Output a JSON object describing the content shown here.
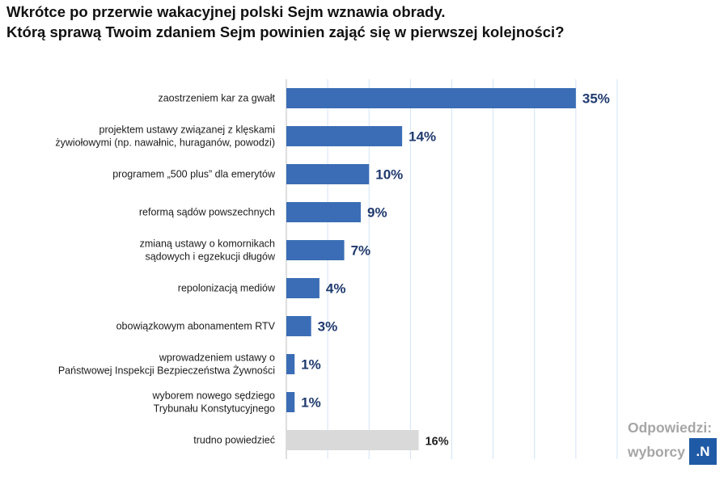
{
  "title": {
    "line1": "Wkrótce po przerwie wakacyjnej polski Sejm wznawia obrady.",
    "line2": "Którą sprawą Twoim zdaniem Sejm powinien zająć się w pierwszej kolejności?"
  },
  "chart_data": {
    "type": "bar",
    "orientation": "horizontal",
    "title": "Wkrótce po przerwie wakacyjnej polski Sejm wznawia obrady. Którą sprawą Twoim zdaniem Sejm powinien zająć się w pierwszej kolejności?",
    "categories": [
      [
        "zaostrzeniem kar za gwałt"
      ],
      [
        "projektem ustawy związanej z klęskami",
        "żywiołowymi (np. nawałnic, huraganów, powodzi)"
      ],
      [
        "programem „500 plus” dla emerytów"
      ],
      [
        "reformą sądów powszechnych"
      ],
      [
        "zmianą ustawy o komornikach",
        "sądowych i egzekucji długów"
      ],
      [
        "repolonizacją mediów"
      ],
      [
        "obowiązkowym abonamentem RTV"
      ],
      [
        "wprowadzeniem ustawy o",
        "Państwowej Inspekcji Bezpieczeństwa Żywności"
      ],
      [
        "wyborem nowego sędziego",
        "Trybunału Konstytucyjnego"
      ],
      [
        "trudno powiedzieć"
      ]
    ],
    "values": [
      35,
      14,
      10,
      9,
      7,
      4,
      3,
      1,
      1,
      16
    ],
    "value_labels": [
      "35%",
      "14%",
      "10%",
      "9%",
      "7%",
      "4%",
      "3%",
      "1%",
      "1%",
      "16%"
    ],
    "bar_colors": [
      "#3a6db5",
      "#3a6db5",
      "#3a6db5",
      "#3a6db5",
      "#3a6db5",
      "#3a6db5",
      "#3a6db5",
      "#3a6db5",
      "#3a6db5",
      "#d9d9d9"
    ],
    "xlim": [
      0,
      40
    ],
    "grid": true,
    "xlabel": "",
    "ylabel": ""
  },
  "footer": {
    "line1": "Odpowiedzi:",
    "line2": "wyborcy",
    "badge": ".N"
  },
  "colors": {
    "bar": "#3a6db5",
    "bar_other": "#d9d9d9",
    "value_text": "#1f3a6e",
    "brand": "#1f5aa6"
  }
}
